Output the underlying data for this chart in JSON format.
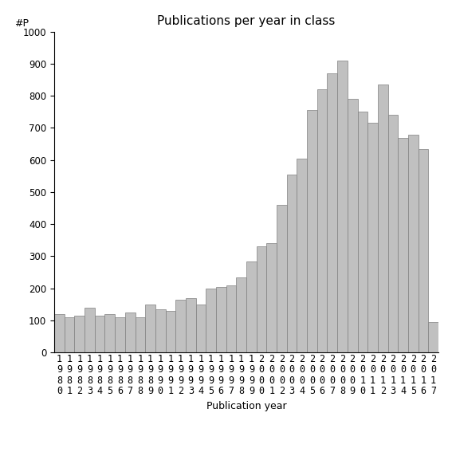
{
  "years": [
    1980,
    1981,
    1982,
    1983,
    1984,
    1985,
    1986,
    1987,
    1988,
    1989,
    1990,
    1991,
    1992,
    1993,
    1994,
    1995,
    1996,
    1997,
    1998,
    1999,
    2000,
    2001,
    2002,
    2003,
    2004,
    2005,
    2006,
    2007,
    2008,
    2009,
    2010,
    2011,
    2012,
    2013,
    2014,
    2015,
    2016,
    2017
  ],
  "values": [
    120,
    110,
    115,
    140,
    115,
    120,
    110,
    125,
    110,
    150,
    135,
    130,
    165,
    170,
    150,
    200,
    205,
    210,
    235,
    285,
    330,
    340,
    460,
    555,
    605,
    755,
    820,
    870,
    910,
    790,
    750,
    715,
    835,
    740,
    670,
    680,
    635,
    95
  ],
  "bar_color": "#c0c0c0",
  "bar_edgecolor": "#808080",
  "title": "Publications per year in class",
  "xlabel": "Publication year",
  "ylabel": "#P",
  "ylim": [
    0,
    1000
  ],
  "yticks": [
    0,
    100,
    200,
    300,
    400,
    500,
    600,
    700,
    800,
    900,
    1000
  ],
  "bg_color": "#ffffff",
  "title_fontsize": 11,
  "axis_label_fontsize": 9,
  "tick_fontsize": 8.5,
  "ylabel_fontsize": 9
}
